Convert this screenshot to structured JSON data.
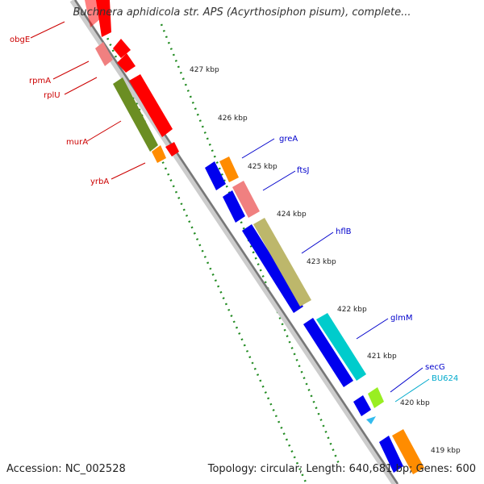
{
  "title": "Buchnera aphidicola str. APS (Acyrthosiphon pisum), complete...",
  "footer": {
    "accession": "Accession: NC_002528",
    "summary": "Topology: circular; Length: 640,681 bp; Genes: 600"
  },
  "ticks": [
    "427 kbp",
    "426 kbp",
    "425 kbp",
    "424 kbp",
    "423 kbp",
    "422 kbp",
    "421 kbp",
    "420 kbp",
    "419 kbp"
  ],
  "gene_labels": {
    "left": [
      "obgE",
      "rpmA",
      "rplU",
      "murA",
      "yrbA"
    ],
    "right": [
      "greA",
      "ftsJ",
      "hflB",
      "glmM",
      "secG",
      "BU624"
    ]
  },
  "colors": {
    "red": "#ff0000",
    "pink": "#f08080",
    "olive": "#6b8e23",
    "orange": "#ff8c00",
    "blue": "#0000ee",
    "khaki": "#bdb76b",
    "cyan": "#00cccc",
    "lime": "#99ee22",
    "lightblue": "#33bbee",
    "label_red": "#cc0000",
    "label_blue": "#0000cc",
    "label_cyan": "#00aacc"
  }
}
